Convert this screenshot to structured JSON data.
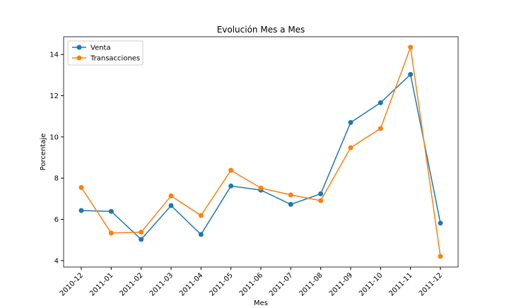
{
  "chart_data": {
    "type": "line",
    "title": "Evolución Mes a Mes",
    "xlabel": "Mes",
    "ylabel": "Porcentaje",
    "categories": [
      "2010-12",
      "2011-01",
      "2011-02",
      "2011-03",
      "2011-04",
      "2011-05",
      "2011-06",
      "2011-07",
      "2011-08",
      "2011-09",
      "2011-10",
      "2011-11",
      "2011-12"
    ],
    "series": [
      {
        "name": "Venta",
        "color": "#1f77b4",
        "values": [
          6.43,
          6.39,
          5.03,
          6.67,
          5.27,
          7.62,
          7.42,
          6.73,
          7.24,
          10.7,
          11.66,
          13.03,
          5.82
        ]
      },
      {
        "name": "Transacciones",
        "color": "#ff7f0e",
        "values": [
          7.55,
          5.34,
          5.38,
          7.14,
          6.19,
          8.38,
          7.52,
          7.19,
          6.91,
          9.48,
          10.41,
          14.35,
          4.21
        ]
      }
    ],
    "ylim": [
      3.69,
      14.86
    ],
    "yticks": [
      4,
      6,
      8,
      10,
      12,
      14
    ],
    "grid": false,
    "legend": "upper left"
  }
}
